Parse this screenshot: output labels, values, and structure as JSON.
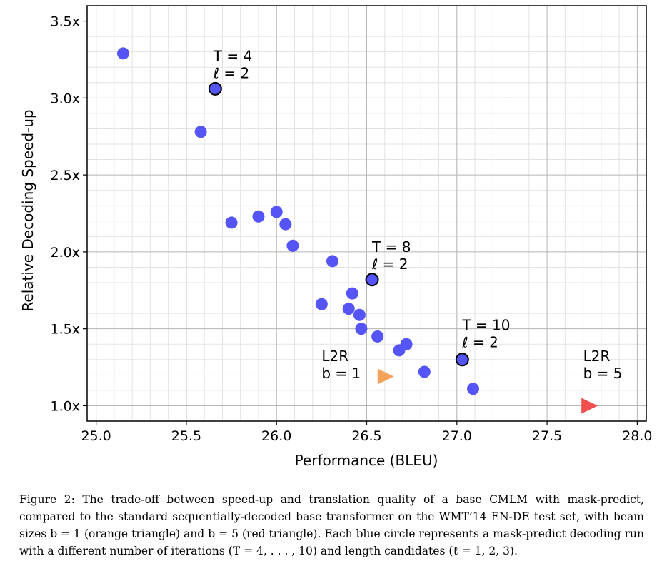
{
  "chart_data": {
    "type": "scatter",
    "xlabel": "Performance (BLEU)",
    "ylabel": "Relative Decoding Speed-up",
    "xlim": [
      24.95,
      28.05
    ],
    "ylim": [
      0.9,
      3.6
    ],
    "x_ticks": [
      25.0,
      25.5,
      26.0,
      26.5,
      27.0,
      27.5,
      28.0
    ],
    "x_tick_labels": [
      "25.0",
      "25.5",
      "26.0",
      "26.5",
      "27.0",
      "27.5",
      "28.0"
    ],
    "y_ticks": [
      1.0,
      1.5,
      2.0,
      2.5,
      3.0,
      3.5
    ],
    "y_tick_labels": [
      "1.0x",
      "1.5x",
      "2.0x",
      "2.5x",
      "3.0x",
      "3.5x"
    ],
    "grid": true,
    "minor_grid_step": {
      "x": 0.1,
      "y": 0.1
    },
    "series": [
      {
        "name": "mask-predict",
        "marker": "circle",
        "color": "#5555f7",
        "points": [
          {
            "x": 25.15,
            "y": 3.29
          },
          {
            "x": 25.58,
            "y": 2.78
          },
          {
            "x": 25.75,
            "y": 2.19
          },
          {
            "x": 25.9,
            "y": 2.23
          },
          {
            "x": 26.0,
            "y": 2.26
          },
          {
            "x": 26.05,
            "y": 2.18
          },
          {
            "x": 26.09,
            "y": 2.04
          },
          {
            "x": 26.31,
            "y": 1.94
          },
          {
            "x": 26.25,
            "y": 1.66
          },
          {
            "x": 26.4,
            "y": 1.63
          },
          {
            "x": 26.42,
            "y": 1.73
          },
          {
            "x": 26.46,
            "y": 1.59
          },
          {
            "x": 26.47,
            "y": 1.5
          },
          {
            "x": 26.56,
            "y": 1.45
          },
          {
            "x": 26.68,
            "y": 1.36
          },
          {
            "x": 26.72,
            "y": 1.4
          },
          {
            "x": 26.82,
            "y": 1.22
          },
          {
            "x": 27.09,
            "y": 1.11
          }
        ]
      },
      {
        "name": "mask-predict highlighted",
        "marker": "circle-outlined",
        "color": "#5555f7",
        "edge_color": "#000000",
        "points": [
          {
            "x": 25.66,
            "y": 3.06
          },
          {
            "x": 26.53,
            "y": 1.82
          },
          {
            "x": 27.03,
            "y": 1.3
          }
        ]
      },
      {
        "name": "L2R b=1",
        "marker": "triangle-right",
        "color": "#f5a25a",
        "points": [
          {
            "x": 26.6,
            "y": 1.19
          }
        ]
      },
      {
        "name": "L2R b=5",
        "marker": "triangle-right",
        "color": "#f05050",
        "points": [
          {
            "x": 27.73,
            "y": 1.0
          }
        ]
      }
    ],
    "annotations": [
      {
        "line1": "T = 4",
        "line2": "ℓ = 2",
        "x": 25.65,
        "y": 3.12
      },
      {
        "line1": "T = 8",
        "line2": "ℓ = 2",
        "x": 26.53,
        "y": 1.88
      },
      {
        "line1": "T = 10",
        "line2": "ℓ = 2",
        "x": 27.03,
        "y": 1.37
      },
      {
        "line1": "L2R",
        "line2": "b = 1",
        "x": 26.25,
        "y": 1.17
      },
      {
        "line1": "L2R",
        "line2": "b = 5",
        "x": 27.7,
        "y": 1.17
      }
    ]
  },
  "caption": "Figure 2: The trade-off between speed-up and translation quality of a base CMLM with mask-predict, compared to the standard sequentially-decoded base transformer on the WMT’14 EN-DE test set, with beam sizes b = 1 (orange triangle) and b = 5 (red triangle). Each blue circle represents a mask-predict decoding run with a different number of iterations (T = 4, . . . , 10) and length candidates (ℓ = 1, 2, 3)."
}
